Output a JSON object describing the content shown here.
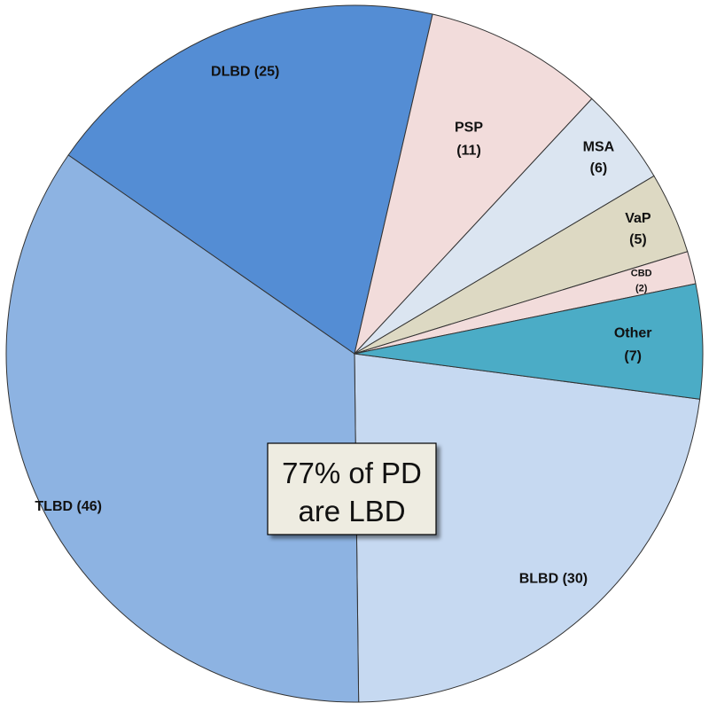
{
  "chart_data": {
    "type": "pie",
    "title": "",
    "direction": "clockwise",
    "slices": [
      {
        "label_lines": [
          "BLBD (30)"
        ],
        "value": 30,
        "color": "#c6d9f1"
      },
      {
        "label_lines": [
          "TLBD (46)"
        ],
        "value": 46,
        "color": "#8db3e2"
      },
      {
        "label_lines": [
          "DLBD (25)"
        ],
        "value": 25,
        "color": "#548dd4"
      },
      {
        "label_lines": [
          "PSP",
          "(11)"
        ],
        "value": 11,
        "color": "#f2dcdb"
      },
      {
        "label_lines": [
          "MSA",
          "(6)"
        ],
        "value": 6,
        "color": "#dbe5f1"
      },
      {
        "label_lines": [
          "VaP",
          "(5)"
        ],
        "value": 5,
        "color": "#ddd9c3"
      },
      {
        "label_lines": [
          "CBD",
          "(2)"
        ],
        "value": 2,
        "color": "#f2dcdb"
      },
      {
        "label_lines": [
          "Other",
          "(7)"
        ],
        "value": 7,
        "color": "#4bacc6"
      }
    ],
    "annotation": {
      "lines": [
        "77% of PD",
        "are LBD"
      ],
      "background": "#eeece1"
    }
  }
}
